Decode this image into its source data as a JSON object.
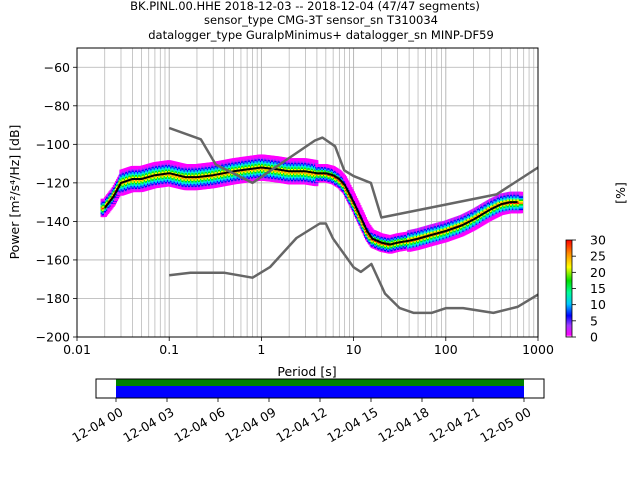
{
  "chart_data": [
    {
      "type": "heatmap",
      "title_lines": [
        "BK.PINL.00.HHE   2018-12-03 -- 2018-12-04  (47/47 segments)",
        "sensor_type CMG-3T sensor_sn T310034",
        "datalogger_type GuralpMinimus+ datalogger_sn MINP-DF59"
      ],
      "xlabel": "Period [s]",
      "ylabel": "Power [m²/s⁴/Hz] [dB]",
      "xscale": "log",
      "xlim": [
        0.01,
        1000
      ],
      "ylim": [
        -200,
        -50
      ],
      "x_ticks": [
        {
          "value": 0.01,
          "label": "0.01"
        },
        {
          "value": 0.1,
          "label": "0.1"
        },
        {
          "value": 1,
          "label": "1"
        },
        {
          "value": 10,
          "label": "10"
        },
        {
          "value": 100,
          "label": "100"
        },
        {
          "value": 1000,
          "label": "1000"
        }
      ],
      "y_ticks": [
        -60,
        -80,
        -100,
        -120,
        -140,
        -160,
        -180,
        -200
      ],
      "y_tick_labels": [
        "−60",
        "−80",
        "−100",
        "−120",
        "−140",
        "−160",
        "−180",
        "−200"
      ],
      "grid": true,
      "colorbar": {
        "label": "[%]",
        "range": [
          0,
          30
        ],
        "ticks": [
          "0",
          "5",
          "10",
          "15",
          "20",
          "25",
          "30"
        ]
      },
      "series": [
        {
          "role": "mean",
          "color": "#000000",
          "x": [
            0.02,
            0.025,
            0.03,
            0.04,
            0.05,
            0.07,
            0.1,
            0.15,
            0.2,
            0.3,
            0.5,
            0.7,
            1,
            1.5,
            2,
            3,
            4,
            5,
            6,
            7,
            8,
            10,
            12,
            14,
            16,
            18,
            20,
            25,
            30,
            40,
            50,
            70,
            100,
            150,
            200,
            300,
            400,
            500,
            600
          ],
          "y": [
            -133,
            -127,
            -120,
            -118,
            -118,
            -116,
            -115,
            -117,
            -117,
            -116,
            -114,
            -113,
            -112,
            -113,
            -114,
            -114,
            -115,
            -115,
            -116,
            -118,
            -121,
            -130,
            -138,
            -145,
            -149,
            -150,
            -151,
            -152,
            -151,
            -150,
            -149,
            -147,
            -145,
            -142,
            -139,
            -134,
            -131,
            -130,
            -130
          ]
        },
        {
          "role": "nhnm",
          "color": "#666666",
          "x": [
            0.1,
            0.22,
            0.32,
            0.8,
            3.8,
            4.6,
            6.3,
            7.9,
            10,
            15.4,
            20,
            354.8,
            1000
          ],
          "y": [
            -91.5,
            -97.4,
            -110.5,
            -120,
            -98,
            -96.5,
            -101,
            -113.5,
            -116.5,
            -120,
            -138,
            -126,
            -112
          ]
        },
        {
          "role": "nlnm",
          "color": "#666666",
          "x": [
            0.1,
            0.17,
            0.4,
            0.8,
            1.24,
            2.4,
            4.3,
            5,
            6,
            10,
            12,
            15.6,
            21.9,
            31.6,
            45,
            70,
            101,
            154,
            328,
            600,
            1000
          ],
          "y": [
            -168,
            -166.7,
            -166.7,
            -169.2,
            -163.7,
            -148.6,
            -141.1,
            -141.1,
            -149,
            -163.8,
            -166.2,
            -162.1,
            -177.5,
            -185,
            -187.5,
            -187.5,
            -185,
            -185,
            -187.5,
            -184.4,
            -178
          ]
        }
      ]
    },
    {
      "type": "bar",
      "role": "data-coverage",
      "x_ticks": [
        "12-04 00",
        "12-04 03",
        "12-04 06",
        "12-04 09",
        "12-04 12",
        "12-04 15",
        "12-04 18",
        "12-04 21",
        "12-05 00"
      ],
      "xlim": [
        "12-03 22:47",
        "12-05 01:10"
      ],
      "coverage": {
        "start": "12-04 00",
        "end": "12-05 00"
      },
      "colors": {
        "coverage": "#0000ff",
        "upper_band": "#008000"
      }
    }
  ]
}
